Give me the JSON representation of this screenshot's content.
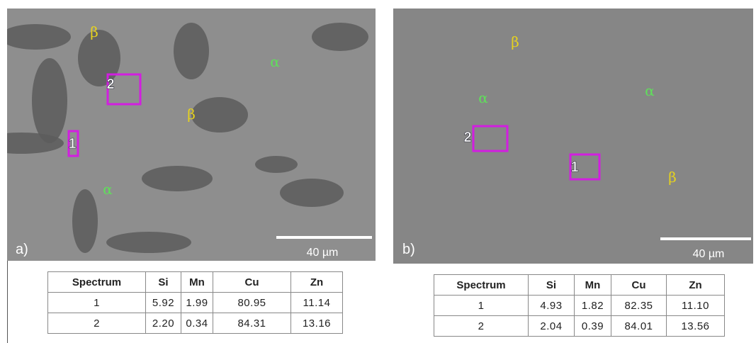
{
  "panels": [
    {
      "label": "a)",
      "scale_bar": "40 µm",
      "phase_labels": [
        "β",
        "β",
        "α",
        "α"
      ],
      "spectra": [
        "1",
        "2"
      ],
      "table": {
        "header": [
          "Spectrum",
          "Si",
          "Mn",
          "Cu",
          "Zn"
        ],
        "rows": [
          [
            "1",
            "5.92",
            "1.99",
            "80.95",
            "11.14"
          ],
          [
            "2",
            "2.20",
            "0.34",
            "84.31",
            "13.16"
          ]
        ]
      }
    },
    {
      "label": "b)",
      "scale_bar": "40 µm",
      "phase_labels": [
        "β",
        "β",
        "α",
        "α"
      ],
      "spectra": [
        "1",
        "2"
      ],
      "table": {
        "header": [
          "Spectrum",
          "Si",
          "Mn",
          "Cu",
          "Zn"
        ],
        "rows": [
          [
            "1",
            "4.93",
            "1.82",
            "82.35",
            "11.10"
          ],
          [
            "2",
            "2.04",
            "0.39",
            "84.01",
            "13.56"
          ]
        ]
      }
    }
  ]
}
